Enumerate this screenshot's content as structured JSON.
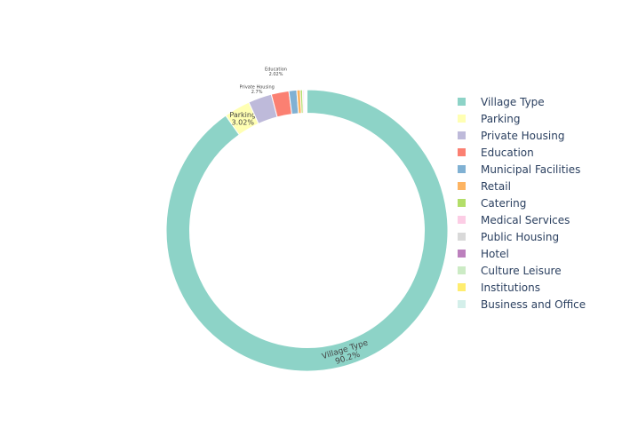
{
  "chart_data": {
    "type": "pie",
    "hole": true,
    "direction": "clockwise",
    "categories": [
      "Village Type",
      "Parking",
      "Private Housing",
      "Education",
      "Municipal Facilities",
      "Retail",
      "Catering",
      "Medical Services",
      "Public Housing",
      "Hotel",
      "Culture Leisure",
      "Institutions",
      "Business and Office"
    ],
    "values": [
      90.2,
      3.02,
      2.7,
      2.02,
      0.9,
      0.4,
      0.25,
      0.15,
      0.12,
      0.1,
      0.08,
      0.05,
      0.01
    ],
    "slice_labels": [
      {
        "name": "Village Type",
        "percent": "90.2%"
      },
      {
        "name": "Parking",
        "percent": "3.02%"
      },
      {
        "name": "Private Housing",
        "percent": "2.7%"
      },
      {
        "name": "Education",
        "percent": "2.02%"
      }
    ],
    "colors": [
      "#8dd3c7",
      "#ffffb3",
      "#bebada",
      "#fb8072",
      "#80b1d3",
      "#fdb462",
      "#b3de69",
      "#fccde5",
      "#d9d9d9",
      "#bc80bd",
      "#ccebc5",
      "#ffed6f",
      "#d4efea"
    ],
    "legend_position": "right"
  }
}
